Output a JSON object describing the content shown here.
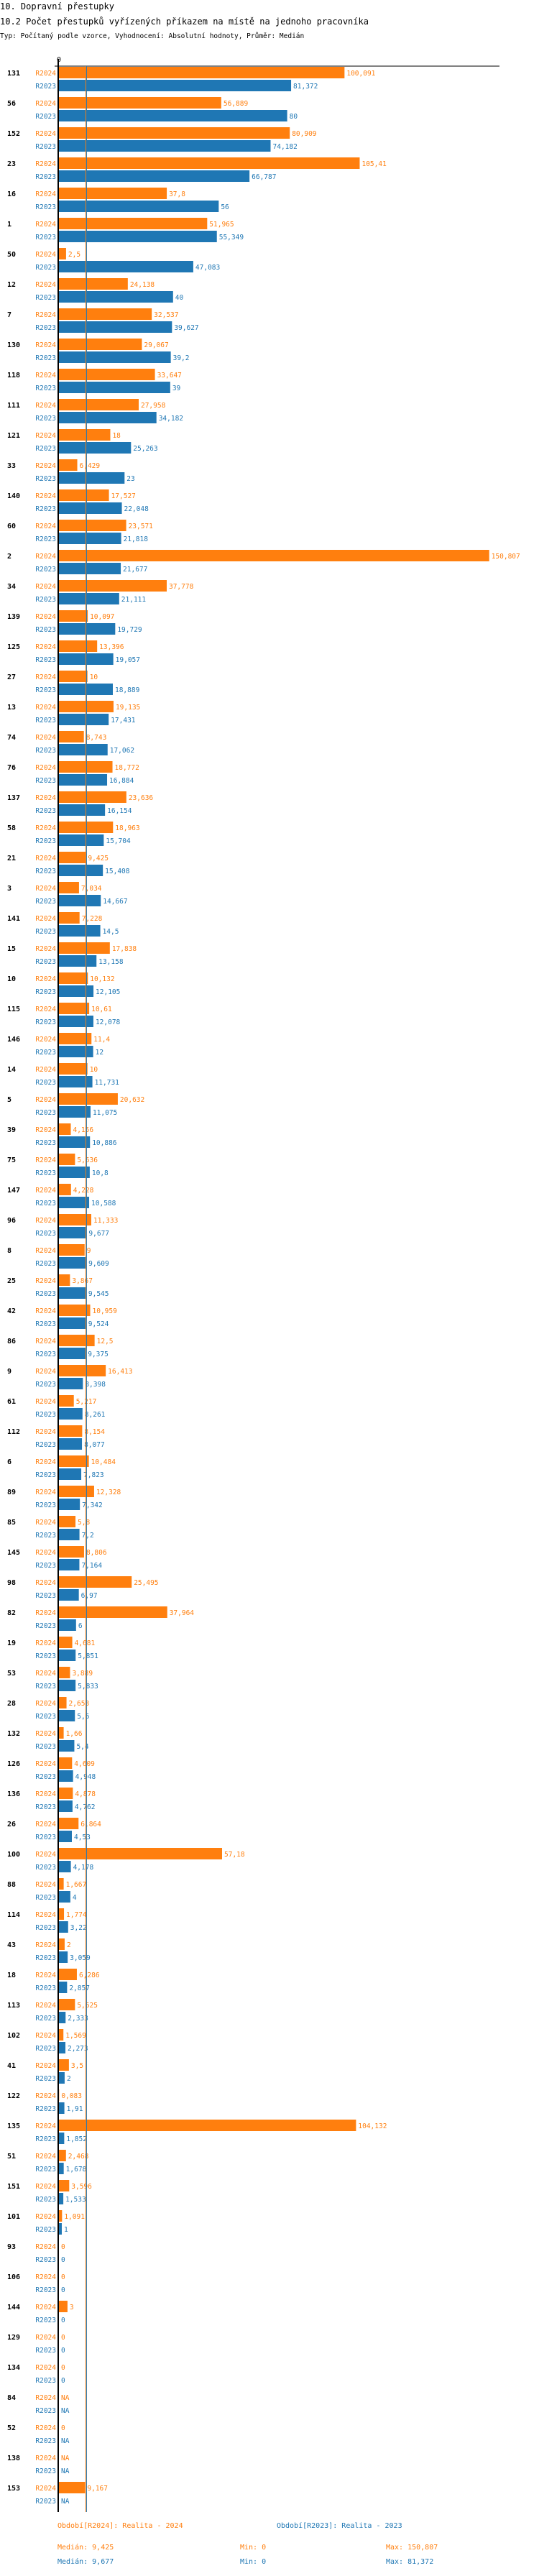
{
  "header": {
    "section": "10. Dopravní přestupky",
    "title": "10.2 Počet přestupků vyřízených příkazem na místě na jednoho pracovníka",
    "subtitle": "Typ: Počítaný podle vzorce, Vyhodnocení: Absolutní hodnoty, Průměr: Medián"
  },
  "colors": {
    "R2024": "#ff7f0e",
    "R2023": "#1f77b4",
    "axis": "#000000"
  },
  "chart_data": {
    "type": "bar",
    "orientation": "horizontal",
    "axis_zero_label": "0",
    "na_label": "NA",
    "categories": [
      "131",
      "56",
      "152",
      "23",
      "16",
      "1",
      "50",
      "12",
      "7",
      "130",
      "118",
      "111",
      "121",
      "33",
      "140",
      "60",
      "2",
      "34",
      "139",
      "125",
      "27",
      "13",
      "74",
      "76",
      "137",
      "58",
      "21",
      "3",
      "141",
      "15",
      "10",
      "115",
      "146",
      "14",
      "5",
      "39",
      "75",
      "147",
      "96",
      "8",
      "25",
      "42",
      "86",
      "9",
      "61",
      "112",
      "6",
      "89",
      "85",
      "145",
      "98",
      "82",
      "19",
      "53",
      "28",
      "132",
      "126",
      "136",
      "26",
      "100",
      "88",
      "114",
      "43",
      "18",
      "113",
      "102",
      "41",
      "122",
      "135",
      "51",
      "151",
      "101",
      "93",
      "106",
      "144",
      "129",
      "134",
      "84",
      "52",
      "138",
      "153"
    ],
    "series": [
      {
        "name": "R2024",
        "values": [
          100.091,
          56.889,
          80.909,
          105.41,
          37.8,
          51.965,
          2.5,
          24.138,
          32.537,
          29.067,
          33.647,
          27.958,
          18,
          6.429,
          17.527,
          23.571,
          150.807,
          37.778,
          10.097,
          13.396,
          10,
          19.135,
          8.743,
          18.772,
          23.636,
          18.963,
          9.425,
          7.034,
          7.228,
          17.838,
          10.132,
          10.61,
          11.4,
          10,
          20.632,
          4.156,
          5.636,
          4.228,
          11.333,
          9,
          3.867,
          10.959,
          12.5,
          16.413,
          5.217,
          8.154,
          10.484,
          12.328,
          5.8,
          8.806,
          25.495,
          37.964,
          4.681,
          3.889,
          2.658,
          1.66,
          4.609,
          4.878,
          6.864,
          57.18,
          1.667,
          1.774,
          2,
          6.286,
          5.625,
          1.569,
          3.5,
          0.083,
          104.132,
          2.468,
          3.596,
          1.091,
          0,
          0,
          3,
          0,
          0,
          null,
          0,
          null,
          9.167
        ]
      },
      {
        "name": "R2023",
        "values": [
          81.372,
          80,
          74.182,
          66.787,
          56,
          55.349,
          47.083,
          40,
          39.627,
          39.2,
          39,
          34.182,
          25.263,
          23,
          22.048,
          21.818,
          21.677,
          21.111,
          19.729,
          19.057,
          18.889,
          17.431,
          17.062,
          16.884,
          16.154,
          15.704,
          15.408,
          14.667,
          14.5,
          13.158,
          12.105,
          12.078,
          12,
          11.731,
          11.075,
          10.886,
          10.8,
          10.588,
          9.677,
          9.609,
          9.545,
          9.524,
          9.375,
          8.398,
          8.261,
          8.077,
          7.823,
          7.342,
          7.2,
          7.164,
          6.97,
          6,
          5.851,
          5.833,
          5.6,
          5.4,
          4.948,
          4.762,
          4.53,
          4.178,
          4,
          3.22,
          3.059,
          2.857,
          2.333,
          2.273,
          2,
          1.91,
          1.852,
          1.678,
          1.533,
          1,
          0,
          0,
          0,
          0,
          0,
          null,
          null,
          null,
          null
        ]
      }
    ],
    "medians": {
      "R2024": 9.425,
      "R2023": 9.677
    }
  },
  "legend": {
    "r2024": "Období[R2024]: Realita - 2024",
    "r2023": "Období[R2023]: Realita - 2023",
    "r2024_median": "Medián: 9,425",
    "r2024_min": "Min: 0",
    "r2024_max": "Max: 150,807",
    "r2023_median": "Medián: 9,677",
    "r2023_min": "Min: 0",
    "r2023_max": "Max: 81,372"
  }
}
